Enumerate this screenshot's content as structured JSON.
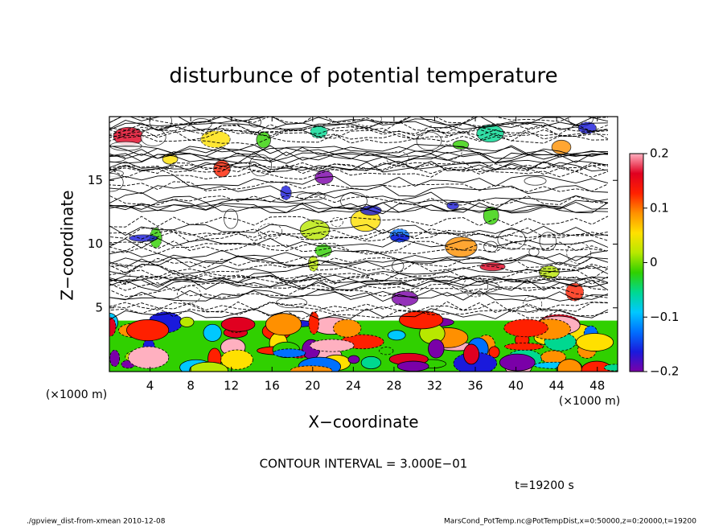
{
  "chart_data": {
    "type": "contour",
    "title": "disturbunce of potential temperature",
    "x_label": "X−coordinate",
    "y_label": "Z−coordinate",
    "x_units": "(×1000 m)",
    "y_units": "(×1000 m)",
    "xlim": [
      0,
      50
    ],
    "xticks": [
      4,
      8,
      12,
      16,
      20,
      24,
      28,
      32,
      36,
      40,
      44,
      48
    ],
    "ylim": [
      0,
      20
    ],
    "yticks": [
      5,
      10,
      15
    ],
    "colorbar": {
      "lim": [
        -0.2,
        0.2
      ],
      "ticks": [
        {
          "value": -0.2,
          "label": "−0.2"
        },
        {
          "value": -0.1,
          "label": "−0.1"
        },
        0,
        0.1,
        0.2
      ],
      "colors": [
        "#7a00a8",
        "#1a1adc",
        "#0070ff",
        "#00c8ff",
        "#00d890",
        "#30d000",
        "#b8e800",
        "#ffe000",
        "#ff9000",
        "#ff2000",
        "#e00020",
        "#ffb0c0"
      ]
    },
    "contour_interval": "CONTOUR INTERVAL = 3.000E−01",
    "time_label": "t=19200 s",
    "footer_left": "./gpview_dist-from-xmean   2010-12-08",
    "footer_right": "MarsCond_PotTemp.nc@PotTempDist,x=0:50000,z=0:20000,t=19200"
  }
}
